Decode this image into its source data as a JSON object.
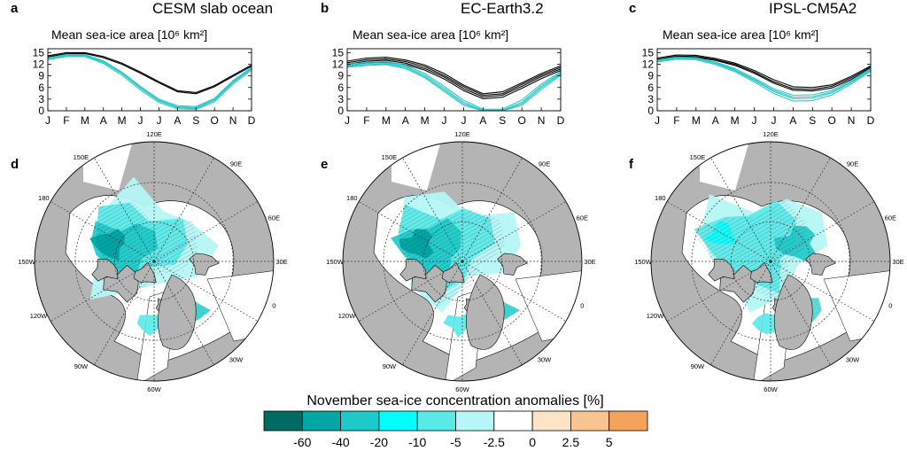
{
  "figure": {
    "colorbar": {
      "title": "November sea-ice concentration anomalies [%]",
      "colors": [
        "#006b63",
        "#00a6a6",
        "#1ec9c9",
        "#00ffff",
        "#5ae9e9",
        "#b5f6f6",
        "#ffffff",
        "#fde4c6",
        "#f9c48f",
        "#f4a25c"
      ],
      "tick_labels": [
        "-60",
        "-40",
        "-20",
        "-10",
        "-5",
        "-2.5",
        "0",
        "2.5",
        "5"
      ]
    },
    "colors": {
      "land": "#b4b4b4",
      "ocean": "#ffffff",
      "black_lines": "#000000",
      "cyan_lines": "#2ec8c8"
    },
    "map_labels": [
      "120E",
      "90E",
      "60E",
      "30E",
      "0",
      "30W",
      "60W",
      "90W",
      "120W",
      "150W",
      "180",
      "150E"
    ]
  },
  "chart_data": [
    {
      "type": "line",
      "letter": "a",
      "title": "CESM slab ocean",
      "ylabel": "Mean sea-ice area [10⁶ km²]",
      "categories": [
        "J",
        "F",
        "M",
        "A",
        "M",
        "J",
        "J",
        "A",
        "S",
        "O",
        "N",
        "D"
      ],
      "yticks": [
        "0",
        "3",
        "6",
        "9",
        "12",
        "15"
      ],
      "ylim": [
        0,
        16
      ],
      "series": [
        {
          "group": "control",
          "values": [
            14.2,
            15.0,
            15.0,
            14.0,
            12.3,
            10.0,
            7.5,
            5.2,
            4.7,
            6.5,
            9.2,
            11.8
          ]
        },
        {
          "group": "control",
          "values": [
            13.9,
            14.7,
            14.8,
            13.7,
            12.0,
            9.7,
            7.2,
            4.9,
            4.4,
            6.2,
            8.9,
            11.5
          ]
        },
        {
          "group": "perturbed",
          "values": [
            13.6,
            14.5,
            14.5,
            12.9,
            10.0,
            6.3,
            3.0,
            1.3,
            1.1,
            3.2,
            7.8,
            11.2
          ]
        },
        {
          "group": "perturbed",
          "values": [
            13.4,
            14.2,
            14.2,
            12.5,
            9.6,
            5.8,
            2.5,
            0.8,
            0.6,
            2.7,
            7.3,
            10.8
          ]
        },
        {
          "group": "perturbed",
          "values": [
            13.2,
            14.0,
            14.0,
            12.2,
            9.2,
            5.4,
            2.1,
            0.5,
            0.4,
            2.3,
            6.9,
            10.5
          ]
        },
        {
          "group": "perturbed",
          "values": [
            13.5,
            14.3,
            14.3,
            12.7,
            9.8,
            6.0,
            2.7,
            1.0,
            0.8,
            2.9,
            7.5,
            11.0
          ]
        }
      ]
    },
    {
      "type": "line",
      "letter": "b",
      "title": "EC-Earth3.2",
      "ylabel": "Mean sea-ice area [10⁶ km²]",
      "categories": [
        "J",
        "F",
        "M",
        "A",
        "M",
        "J",
        "J",
        "A",
        "S",
        "O",
        "N",
        "D"
      ],
      "yticks": [
        "0",
        "3",
        "6",
        "9",
        "12",
        "15"
      ],
      "ylim": [
        0,
        16
      ],
      "series": [
        {
          "group": "control",
          "values": [
            12.8,
            13.6,
            13.8,
            13.1,
            11.8,
            9.6,
            6.6,
            4.4,
            4.9,
            7.2,
            9.6,
            11.6
          ]
        },
        {
          "group": "control",
          "values": [
            12.4,
            13.2,
            13.4,
            12.7,
            11.4,
            9.1,
            6.2,
            4.0,
            4.4,
            6.8,
            9.2,
            11.2
          ]
        },
        {
          "group": "control",
          "values": [
            12.0,
            12.8,
            13.0,
            12.3,
            10.9,
            8.7,
            5.7,
            3.6,
            4.0,
            6.3,
            8.8,
            10.8
          ]
        },
        {
          "group": "control",
          "values": [
            11.6,
            12.4,
            12.6,
            11.9,
            10.5,
            8.2,
            5.2,
            3.1,
            3.5,
            5.8,
            8.3,
            10.4
          ]
        },
        {
          "group": "perturbed",
          "values": [
            12.0,
            12.5,
            12.7,
            11.8,
            9.6,
            6.3,
            2.7,
            0.4,
            0.4,
            2.8,
            6.9,
            10.1
          ]
        },
        {
          "group": "perturbed",
          "values": [
            11.7,
            12.2,
            12.4,
            11.5,
            9.2,
            5.8,
            2.2,
            0.1,
            0.1,
            2.2,
            6.4,
            9.8
          ]
        },
        {
          "group": "perturbed",
          "values": [
            11.4,
            11.9,
            12.1,
            11.2,
            8.8,
            5.4,
            1.8,
            0.0,
            0.0,
            1.8,
            6.0,
            9.5
          ]
        },
        {
          "group": "perturbed",
          "values": [
            11.2,
            11.7,
            11.9,
            10.9,
            8.5,
            5.0,
            1.4,
            0.0,
            0.0,
            1.4,
            5.5,
            9.2
          ]
        }
      ]
    },
    {
      "type": "line",
      "letter": "c",
      "title": "IPSL-CM5A2",
      "ylabel": "Mean sea-ice area [10⁶ km²]",
      "categories": [
        "J",
        "F",
        "M",
        "A",
        "M",
        "J",
        "J",
        "A",
        "S",
        "O",
        "N",
        "D"
      ],
      "yticks": [
        "0",
        "3",
        "6",
        "9",
        "12",
        "15"
      ],
      "ylim": [
        0,
        16
      ],
      "series": [
        {
          "group": "control",
          "values": [
            13.6,
            14.4,
            14.3,
            13.5,
            12.3,
            10.4,
            8.0,
            6.2,
            6.0,
            6.7,
            8.9,
            11.6
          ]
        },
        {
          "group": "control",
          "values": [
            13.3,
            14.1,
            14.0,
            13.2,
            12.0,
            10.0,
            7.5,
            5.7,
            5.5,
            6.3,
            8.5,
            11.3
          ]
        },
        {
          "group": "control",
          "values": [
            13.0,
            13.8,
            13.8,
            13.0,
            11.7,
            9.7,
            7.1,
            5.3,
            5.1,
            5.9,
            8.1,
            11.0
          ]
        },
        {
          "group": "perturbed",
          "values": [
            13.1,
            13.8,
            13.7,
            12.6,
            10.9,
            8.4,
            5.7,
            4.0,
            4.1,
            5.3,
            7.8,
            10.9
          ]
        },
        {
          "group": "perturbed",
          "values": [
            12.8,
            13.5,
            13.4,
            12.2,
            10.4,
            7.8,
            5.0,
            3.1,
            3.2,
            4.6,
            7.3,
            10.5
          ]
        },
        {
          "group": "perturbed",
          "values": [
            12.6,
            13.3,
            13.2,
            11.9,
            10.1,
            7.4,
            4.5,
            2.5,
            2.6,
            4.1,
            6.9,
            10.2
          ]
        },
        {
          "group": "perturbed",
          "values": [
            12.9,
            13.6,
            13.5,
            12.4,
            10.6,
            8.1,
            5.3,
            3.5,
            3.6,
            4.9,
            7.5,
            10.7
          ]
        }
      ]
    },
    {
      "type": "heatmap",
      "letter": "d",
      "projection": "north polar stereographic",
      "grid_labels": [
        "120E",
        "90E",
        "60E",
        "30E",
        "0",
        "30W",
        "60W",
        "90W",
        "120W",
        "150W",
        "180",
        "150E"
      ],
      "value_bins": [
        -60,
        -40,
        -20,
        -10,
        -5,
        -2.5,
        0,
        2.5,
        5
      ]
    },
    {
      "type": "heatmap",
      "letter": "e",
      "projection": "north polar stereographic",
      "grid_labels": [
        "120E",
        "90E",
        "60E",
        "30E",
        "0",
        "30W",
        "60W",
        "90W",
        "120W",
        "150W",
        "180",
        "150E"
      ],
      "value_bins": [
        -60,
        -40,
        -20,
        -10,
        -5,
        -2.5,
        0,
        2.5,
        5
      ]
    },
    {
      "type": "heatmap",
      "letter": "f",
      "projection": "north polar stereographic",
      "grid_labels": [
        "120E",
        "90E",
        "60E",
        "30E",
        "0",
        "30W",
        "60W",
        "90W",
        "120W",
        "150W",
        "180",
        "150E"
      ],
      "value_bins": [
        -60,
        -40,
        -20,
        -10,
        -5,
        -2.5,
        0,
        2.5,
        5
      ]
    }
  ]
}
